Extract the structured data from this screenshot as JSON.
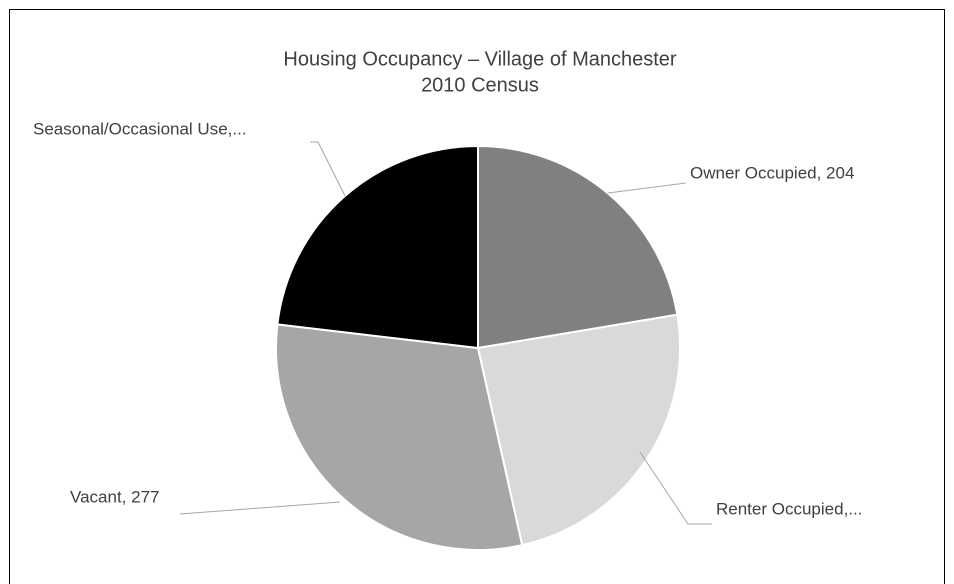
{
  "chart_data": {
    "type": "pie",
    "title": "Housing Occupancy – Village of Manchester",
    "subtitle": "2010 Census",
    "categories": [
      "Owner Occupied",
      "Renter Occupied",
      "Vacant",
      "Seasonal/Occasional Use"
    ],
    "values": [
      204,
      220,
      277,
      211
    ],
    "value_labels": [
      "Owner Occupied, 204",
      "Renter Occupied,...",
      "Vacant, 277",
      "Seasonal/Occasional Use,..."
    ],
    "colors": [
      "#808080",
      "#d9d9d9",
      "#a6a6a6",
      "#000000"
    ]
  }
}
